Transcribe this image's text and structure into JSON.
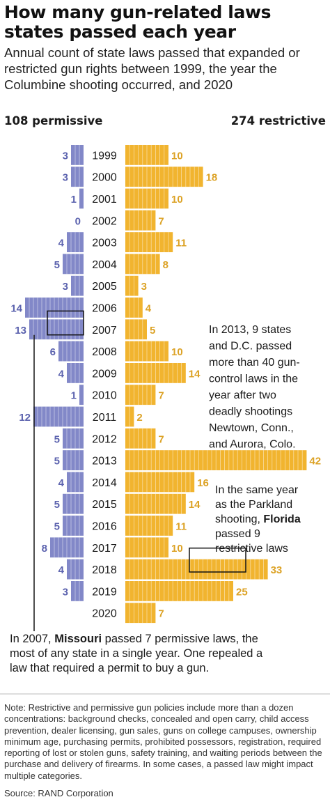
{
  "title": "How many gun-related laws states passed each year",
  "subtitle": "Annual count of state laws passed that expanded or restricted gun rights between 1999, the year the Columbine shooting occurred, and 2020",
  "headers": {
    "permissive": "108 permissive",
    "restrictive": "274 restrictive"
  },
  "annotations": {
    "a2013": [
      "In 2013, 9 states",
      "and D.C. passed",
      "more than 40 gun-",
      "control laws in the",
      "year after two",
      "deadly shootings",
      "Newtown, Conn.,",
      "and Aurora, Colo."
    ],
    "a2018": [
      [
        {
          "t": "In the same year",
          "b": false
        }
      ],
      [
        {
          "t": "as the Parkland",
          "b": false
        }
      ],
      [
        {
          "t": "shooting, ",
          "b": false
        },
        {
          "t": "Florida",
          "b": true
        }
      ],
      [
        {
          "t": "passed 9",
          "b": false
        }
      ],
      [
        {
          "t": "restrictive laws",
          "b": false
        }
      ]
    ],
    "a2007": [
      [
        {
          "t": "In 2007,  ",
          "b": false
        },
        {
          "t": "Missouri",
          "b": true
        },
        {
          "t": " passed 7 permissive laws, the",
          "b": false
        }
      ],
      [
        {
          "t": "most of any state in a single year. One repealed a",
          "b": false
        }
      ],
      [
        {
          "t": "law that required a permit to buy a gun.",
          "b": false
        }
      ]
    ]
  },
  "note": "Note: Restrictive and permissive gun policies include more than a dozen concentrations: background checks, concealed and open carry, child access prevention, dealer licensing, gun sales, guns on college campuses, ownership minimum age, purchasing permits, prohibited possessors, registration, required reporting of lost or stolen guns, safety training,  and waiting periods between the purchase and delivery of firearms. In some cases, a passed law might impact multiple categories.",
  "source": "Source: RAND Corporation",
  "colors": {
    "permissive": "#8288c8",
    "permissive_text": "#5b62ae",
    "restrictive": "#f1b42f",
    "restrictive_text": "#dca225"
  },
  "chart_data": {
    "type": "bar",
    "categories": [
      "1999",
      "2000",
      "2001",
      "2002",
      "2003",
      "2004",
      "2005",
      "2006",
      "2007",
      "2008",
      "2009",
      "2010",
      "2011",
      "2012",
      "2013",
      "2014",
      "2015",
      "2016",
      "2017",
      "2018",
      "2019",
      "2020"
    ],
    "series": [
      {
        "name": "permissive",
        "values": [
          3,
          3,
          1,
          0,
          4,
          5,
          3,
          14,
          13,
          6,
          4,
          1,
          12,
          5,
          5,
          4,
          5,
          5,
          8,
          4,
          3,
          null
        ]
      },
      {
        "name": "restrictive",
        "values": [
          10,
          18,
          10,
          7,
          11,
          8,
          3,
          4,
          5,
          10,
          14,
          7,
          2,
          7,
          42,
          16,
          14,
          11,
          10,
          33,
          25,
          7
        ]
      }
    ]
  }
}
